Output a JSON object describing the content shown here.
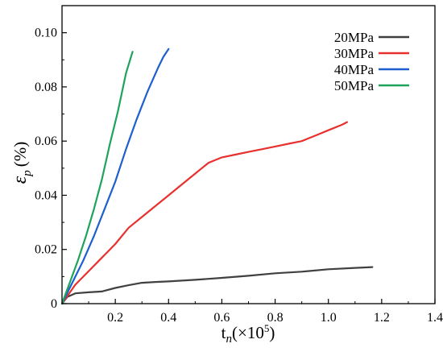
{
  "chart_data": {
    "type": "line",
    "xlabel": {
      "base": "t",
      "sub": "n",
      "rest": "(×10",
      "sup": "5",
      "close": ")"
    },
    "ylabel": {
      "base": "ε",
      "sub": "p",
      "unit": "(%)"
    },
    "xlim": [
      0,
      1.4
    ],
    "ylim": [
      0,
      0.11
    ],
    "xticks": [
      0.2,
      0.4,
      0.6,
      0.8,
      1.0,
      1.2,
      1.4
    ],
    "xtick_labels": [
      "0.2",
      "0.4",
      "0.6",
      "0.8",
      "1.0",
      "1.2",
      "1.4"
    ],
    "yticks": [
      0,
      0.02,
      0.04,
      0.06,
      0.08,
      0.1
    ],
    "ytick_labels": [
      "0",
      "0.02",
      "0.04",
      "0.06",
      "0.08",
      "0.10"
    ],
    "grid": false,
    "legend_position": "top-right",
    "series": [
      {
        "name": "20MPa",
        "color": "#404040",
        "x": [
          0,
          0.02,
          0.05,
          0.1,
          0.15,
          0.2,
          0.25,
          0.3,
          0.35,
          0.4,
          0.5,
          0.6,
          0.7,
          0.8,
          0.9,
          1.0,
          1.1,
          1.165
        ],
        "y": [
          0,
          0.0025,
          0.0038,
          0.0042,
          0.0045,
          0.0058,
          0.0068,
          0.0077,
          0.008,
          0.0082,
          0.0088,
          0.0095,
          0.0103,
          0.0112,
          0.0118,
          0.0127,
          0.0132,
          0.0135
        ]
      },
      {
        "name": "30MPa",
        "color": "#e8312f",
        "x": [
          0,
          0.05,
          0.1,
          0.15,
          0.2,
          0.25,
          0.3,
          0.35,
          0.4,
          0.45,
          0.5,
          0.55,
          0.6,
          0.65,
          0.7,
          0.75,
          0.8,
          0.85,
          0.9,
          0.95,
          1.0,
          1.05,
          1.07
        ],
        "y": [
          0,
          0.007,
          0.012,
          0.017,
          0.022,
          0.028,
          0.032,
          0.036,
          0.04,
          0.044,
          0.048,
          0.052,
          0.054,
          0.055,
          0.056,
          0.057,
          0.058,
          0.059,
          0.06,
          0.062,
          0.064,
          0.066,
          0.067
        ]
      },
      {
        "name": "40MPa",
        "color": "#1e5fcf",
        "x": [
          0,
          0.04,
          0.08,
          0.12,
          0.16,
          0.2,
          0.24,
          0.28,
          0.32,
          0.36,
          0.38,
          0.4
        ],
        "y": [
          0,
          0.008,
          0.016,
          0.025,
          0.035,
          0.045,
          0.057,
          0.068,
          0.078,
          0.087,
          0.091,
          0.094
        ]
      },
      {
        "name": "50MPa",
        "color": "#1fa35a",
        "x": [
          0,
          0.03,
          0.06,
          0.09,
          0.12,
          0.15,
          0.18,
          0.21,
          0.24,
          0.265
        ],
        "y": [
          0,
          0.008,
          0.016,
          0.025,
          0.035,
          0.046,
          0.059,
          0.071,
          0.085,
          0.093
        ]
      }
    ]
  }
}
